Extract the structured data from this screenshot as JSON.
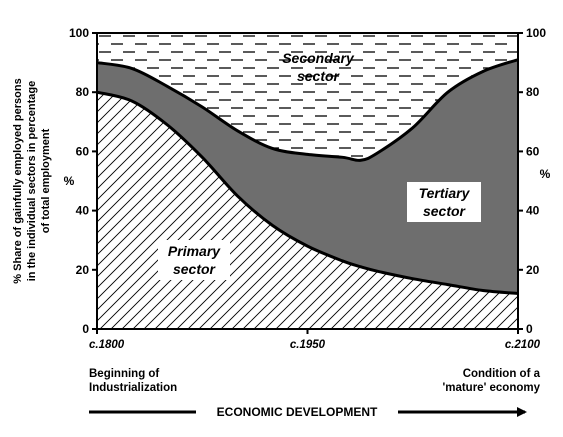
{
  "chart_data": {
    "type": "area",
    "x": [
      1800,
      1825,
      1850,
      1875,
      1900,
      1925,
      1950,
      1975,
      1988,
      2000,
      2025,
      2050,
      2075,
      2100
    ],
    "series": [
      {
        "name": "Primary sector",
        "values": [
          80,
          77,
          69,
          58,
          45,
          35,
          28,
          23,
          21,
          19.5,
          17,
          15,
          13,
          12
        ]
      },
      {
        "name": "Tertiary sector",
        "values": [
          10,
          11,
          13,
          17,
          22,
          26,
          31,
          35,
          36,
          40,
          51,
          65,
          74,
          79
        ]
      },
      {
        "name": "Secondary sector",
        "values": [
          10,
          12,
          18,
          25,
          33,
          39,
          41,
          42,
          43,
          40.5,
          32,
          20,
          13,
          9
        ]
      }
    ],
    "xlim": [
      1800,
      2100
    ],
    "ylim": [
      0,
      100
    ],
    "y_ticks": [
      "0",
      "20",
      "40",
      "60",
      "80",
      "100"
    ],
    "x_ticks": [
      {
        "value": 1800,
        "label": "c.1800"
      },
      {
        "value": 1950,
        "label": "c.1950"
      },
      {
        "value": 2100,
        "label": "c.2100"
      }
    ],
    "ylabel_left": {
      "lines": [
        "% Share of gainfully employed persons",
        "in the individual sectors in percentage",
        "of total employment"
      ],
      "unit": "%"
    },
    "ylabel_right_unit": "%",
    "region_labels": {
      "primary": [
        "Primary",
        "sector"
      ],
      "secondary": [
        "Secondary",
        "sector"
      ],
      "tertiary": [
        "Tertiary",
        "sector"
      ]
    },
    "captions": {
      "left": [
        "Beginning of",
        "Industrialization"
      ],
      "right": [
        "Condition of a",
        "'mature' economy"
      ]
    },
    "xlabel": "ECONOMIC DEVELOPMENT",
    "grid": false,
    "fills": {
      "primary": "diagonal-hatch",
      "tertiary": "#6e6e6e",
      "secondary": "dashed-horizontal"
    }
  }
}
